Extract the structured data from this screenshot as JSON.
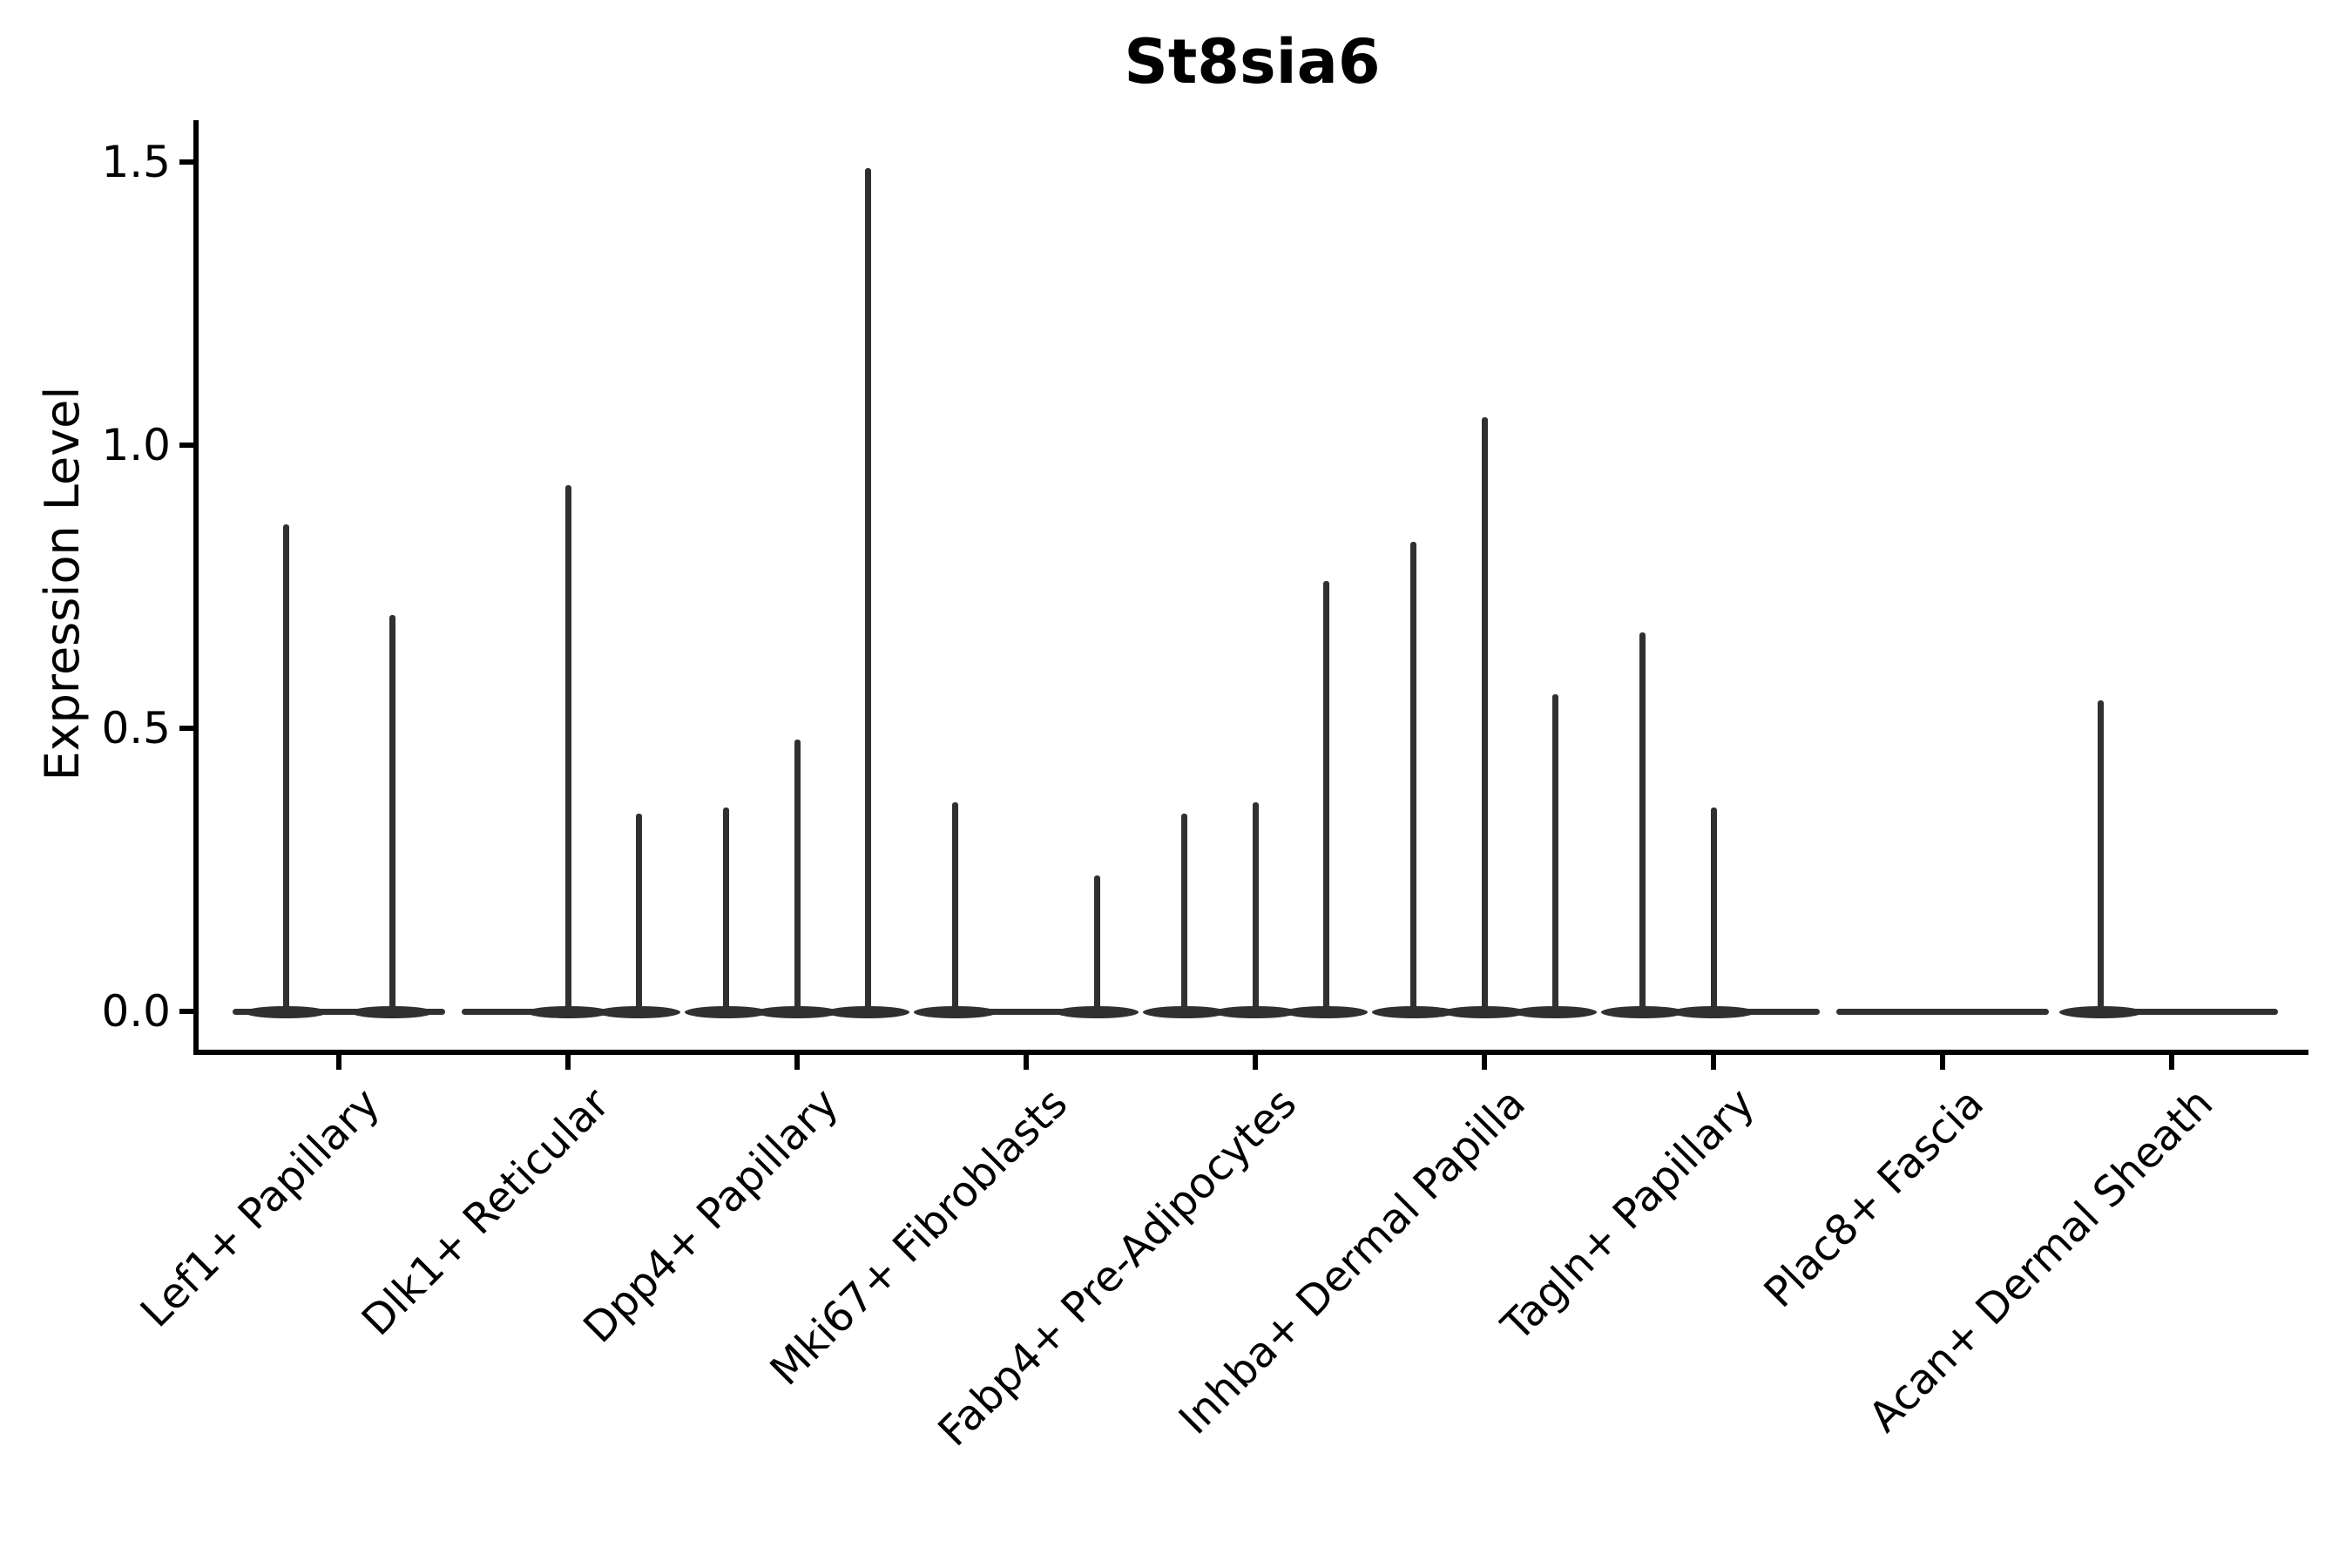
{
  "title": "St8sia6",
  "y_axis": {
    "label": "Expression Level",
    "ticks": [
      {
        "label": "0.0",
        "value": 0.0
      },
      {
        "label": "0.5",
        "value": 0.5
      },
      {
        "label": "1.0",
        "value": 1.0
      },
      {
        "label": "1.5",
        "value": 1.5
      }
    ]
  },
  "colors": {
    "violin": "#303030",
    "axis": "#000000",
    "text": "#000000",
    "background": "#ffffff"
  },
  "chart_data": {
    "type": "violin",
    "title": "St8sia6",
    "xlabel": "",
    "ylabel": "Expression Level",
    "ylim": [
      0,
      1.55
    ],
    "yticks": [
      0.0,
      0.5,
      1.0,
      1.5
    ],
    "grid": false,
    "legend_position": "none",
    "categories": [
      "Lef1+ Papillary",
      "Dlk1+ Reticular",
      "Dpp4+ Papillary",
      "Mki67+ Fibroblasts",
      "Fabp4+ Pre-Adipocytes",
      "Inhba+ Dermal Papilla",
      "Tagln+ Papillary",
      "Plac8+ Fascia",
      "Acan+ Dermal Sheath"
    ],
    "groups": [
      {
        "label": "Lef1+ Papillary",
        "n_violins": 2,
        "spikes": [
          {
            "violin": 1,
            "max_expression": 0.86
          },
          {
            "violin": 2,
            "max_expression": 0.7
          }
        ]
      },
      {
        "label": "Dlk1+ Reticular",
        "n_violins": 3,
        "spikes": [
          {
            "violin": 2,
            "max_expression": 0.93
          },
          {
            "violin": 3,
            "max_expression": 0.35
          }
        ]
      },
      {
        "label": "Dpp4+ Papillary",
        "n_violins": 3,
        "spikes": [
          {
            "violin": 1,
            "max_expression": 0.36
          },
          {
            "violin": 2,
            "max_expression": 0.48
          },
          {
            "violin": 3,
            "max_expression": 1.49
          }
        ]
      },
      {
        "label": "Mki67+ Fibroblasts",
        "n_violins": 3,
        "spikes": [
          {
            "violin": 1,
            "max_expression": 0.37
          },
          {
            "violin": 3,
            "max_expression": 0.24
          }
        ]
      },
      {
        "label": "Fabp4+ Pre-Adipocytes",
        "n_violins": 3,
        "spikes": [
          {
            "violin": 1,
            "max_expression": 0.35
          },
          {
            "violin": 2,
            "max_expression": 0.37
          },
          {
            "violin": 3,
            "max_expression": 0.76
          }
        ]
      },
      {
        "label": "Inhba+ Dermal Papilla",
        "n_violins": 3,
        "spikes": [
          {
            "violin": 1,
            "max_expression": 0.83
          },
          {
            "violin": 2,
            "max_expression": 1.05
          },
          {
            "violin": 3,
            "max_expression": 0.56
          }
        ]
      },
      {
        "label": "Tagln+ Papillary",
        "n_violins": 3,
        "spikes": [
          {
            "violin": 1,
            "max_expression": 0.67
          },
          {
            "violin": 2,
            "max_expression": 0.36
          }
        ]
      },
      {
        "label": "Plac8+ Fascia",
        "n_violins": 3,
        "spikes": []
      },
      {
        "label": "Acan+ Dermal Sheath",
        "n_violins": 3,
        "spikes": [
          {
            "violin": 1,
            "max_expression": 0.55
          }
        ]
      }
    ]
  }
}
